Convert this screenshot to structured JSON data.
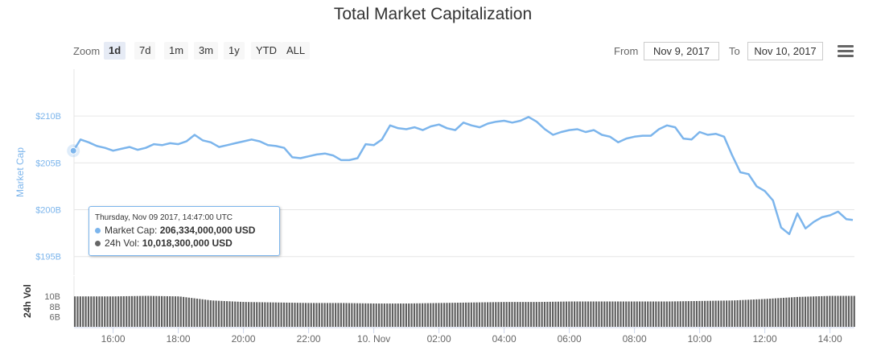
{
  "chart_data": {
    "type": "line",
    "title": "Total Market Capitalization",
    "ylabel": "Market Cap",
    "y_ticks": [
      "$195B",
      "$200B",
      "$205B",
      "$210B"
    ],
    "ylim": [
      193,
      215
    ],
    "x_ticks": [
      "16:00",
      "18:00",
      "20:00",
      "22:00",
      "10. Nov",
      "02:00",
      "04:00",
      "06:00",
      "08:00",
      "10:00",
      "12:00",
      "14:00"
    ],
    "x_tick_hours": [
      16,
      18,
      20,
      22,
      24,
      26,
      28,
      30,
      32,
      34,
      36,
      38
    ],
    "xlim_hours": [
      14.8,
      38.75
    ],
    "series": [
      {
        "name": "Market Cap",
        "unit": "B USD",
        "color": "#7cb5ec",
        "x_hours": [
          14.78,
          15.0,
          15.25,
          15.5,
          15.75,
          16.0,
          16.25,
          16.5,
          16.75,
          17.0,
          17.25,
          17.5,
          17.75,
          18.0,
          18.25,
          18.5,
          18.75,
          19.0,
          19.25,
          19.5,
          19.75,
          20.0,
          20.25,
          20.5,
          20.75,
          21.0,
          21.25,
          21.5,
          21.75,
          22.0,
          22.25,
          22.5,
          22.75,
          23.0,
          23.25,
          23.5,
          23.75,
          24.0,
          24.25,
          24.5,
          24.75,
          25.0,
          25.25,
          25.5,
          25.75,
          26.0,
          26.25,
          26.5,
          26.75,
          27.0,
          27.25,
          27.5,
          27.75,
          28.0,
          28.25,
          28.5,
          28.75,
          29.0,
          29.25,
          29.5,
          29.75,
          30.0,
          30.25,
          30.5,
          30.75,
          31.0,
          31.25,
          31.5,
          31.75,
          32.0,
          32.25,
          32.5,
          32.75,
          33.0,
          33.25,
          33.5,
          33.75,
          34.0,
          34.25,
          34.5,
          34.75,
          35.0,
          35.25,
          35.5,
          35.75,
          36.0,
          36.25,
          36.5,
          36.75,
          37.0,
          37.25,
          37.5,
          37.75,
          38.0,
          38.25,
          38.5,
          38.7
        ],
        "values": [
          206.3,
          207.5,
          207.2,
          206.8,
          206.6,
          206.3,
          206.5,
          206.7,
          206.4,
          206.6,
          207.0,
          206.9,
          207.1,
          207.0,
          207.3,
          208.0,
          207.4,
          207.2,
          206.7,
          206.9,
          207.1,
          207.3,
          207.5,
          207.3,
          206.9,
          206.8,
          206.6,
          205.6,
          205.5,
          205.7,
          205.9,
          206.0,
          205.8,
          205.3,
          205.3,
          205.5,
          207.0,
          206.9,
          207.5,
          209.0,
          208.7,
          208.6,
          208.8,
          208.5,
          208.9,
          209.1,
          208.7,
          208.5,
          209.3,
          209.0,
          208.8,
          209.2,
          209.4,
          209.5,
          209.3,
          209.5,
          209.9,
          209.4,
          208.6,
          208.0,
          208.3,
          208.5,
          208.6,
          208.3,
          208.5,
          208.0,
          207.8,
          207.2,
          207.6,
          207.8,
          207.9,
          207.9,
          208.6,
          209.0,
          208.8,
          207.6,
          207.5,
          208.3,
          208.0,
          208.1,
          207.8,
          205.8,
          204.0,
          203.8,
          202.5,
          202.0,
          201.0,
          198.1,
          197.4,
          199.6,
          198.0,
          198.7,
          199.2,
          199.4,
          199.8,
          199.0,
          198.9
        ]
      },
      {
        "name": "24h Vol",
        "unit": "B USD",
        "color": "#666666",
        "ylim": [
          4,
          14
        ],
        "y_ticks": [
          "6B",
          "8B",
          "10B"
        ],
        "x_hours": [
          14.78,
          15.0,
          16.0,
          17.0,
          18.0,
          19.0,
          20.0,
          21.0,
          22.0,
          23.0,
          24.0,
          25.0,
          26.0,
          27.0,
          28.0,
          29.0,
          30.0,
          31.0,
          32.0,
          33.0,
          34.0,
          35.0,
          36.0,
          37.0,
          38.0,
          38.7
        ],
        "values": [
          10.0,
          10.0,
          10.0,
          10.1,
          10.0,
          9.2,
          8.9,
          8.8,
          8.7,
          8.7,
          8.6,
          8.6,
          8.7,
          8.8,
          8.9,
          8.9,
          9.0,
          9.0,
          9.0,
          9.0,
          9.1,
          9.2,
          9.5,
          9.9,
          10.1,
          10.1
        ]
      }
    ],
    "vol_axis_label": "24h Vol",
    "grid": true,
    "tooltip_point_hours": 14.78
  },
  "toolbar": {
    "zoom_label": "Zoom",
    "zoom_options": [
      "1d",
      "7d",
      "1m",
      "3m",
      "1y",
      "YTD",
      "ALL"
    ],
    "active": "1d",
    "from_label": "From",
    "from_value": "Nov 9, 2017",
    "to_label": "To",
    "to_value": "Nov 10, 2017",
    "menu_icon": "hamburger-menu-icon"
  },
  "tooltip": {
    "date": "Thursday, Nov 09 2017, 14:47:00 UTC",
    "mcap_label": "Market Cap:",
    "mcap_value": "206,334,000,000 USD",
    "vol_label": "24h Vol:",
    "vol_value": "10,018,300,000 USD"
  }
}
